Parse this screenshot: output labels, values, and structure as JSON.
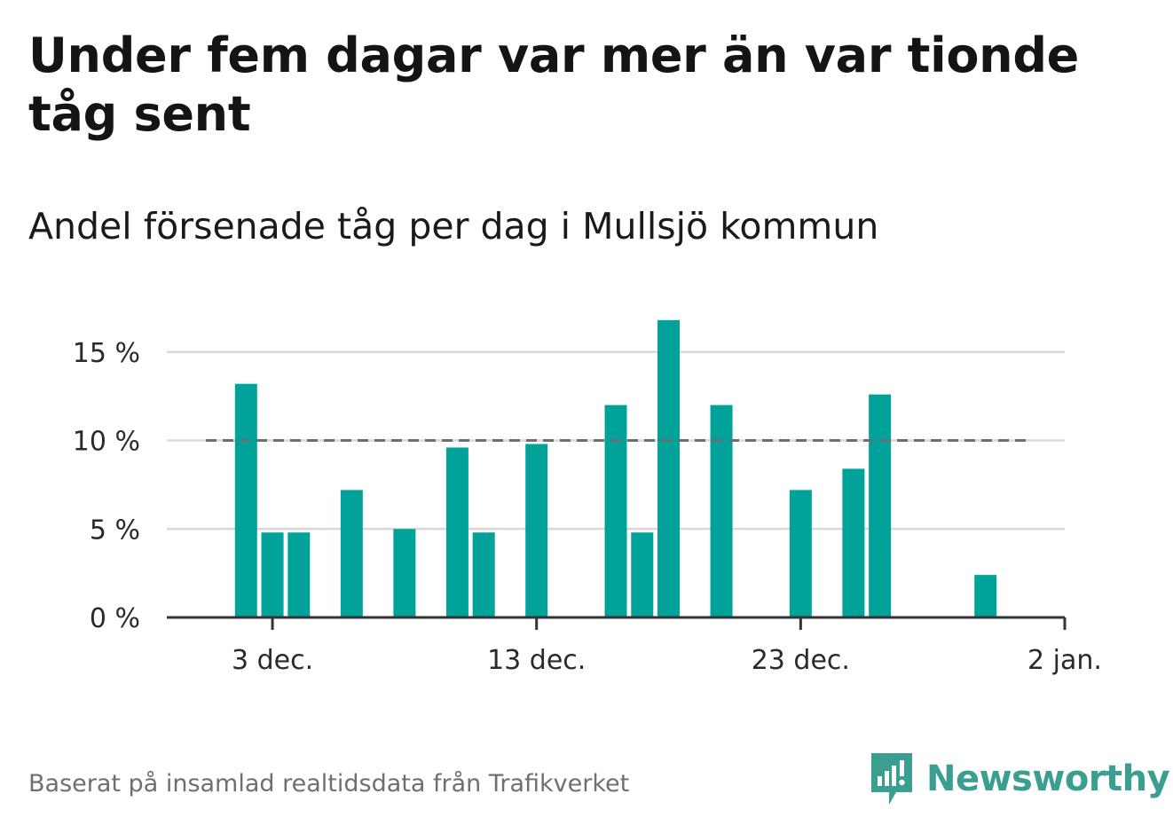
{
  "title": "Under fem dagar var mer än var tionde tåg sent",
  "subtitle": "Andel försenade tåg per dag i Mullsjö kommun",
  "source": "Baserat på insamlad realtidsdata från Trafikverket",
  "brand": {
    "name": "Newsworthy",
    "color": "#3a9e90",
    "icon": "newsworthy-logo-icon"
  },
  "colors": {
    "bar": "#00a29a",
    "threshold": "#6e6e6e",
    "grid": "#d9d9d9",
    "axis": "#333333"
  },
  "chart_data": {
    "type": "bar",
    "x_unit": "date",
    "x": [
      "2023-12-02",
      "2023-12-03",
      "2023-12-04",
      "2023-12-06",
      "2023-12-08",
      "2023-12-10",
      "2023-12-11",
      "2023-12-13",
      "2023-12-16",
      "2023-12-17",
      "2023-12-18",
      "2023-12-20",
      "2023-12-23",
      "2023-12-25",
      "2023-12-26",
      "2023-12-30"
    ],
    "values": [
      13.2,
      4.8,
      4.8,
      7.2,
      5.0,
      9.6,
      4.8,
      9.8,
      12.0,
      4.8,
      16.8,
      12.0,
      7.2,
      8.4,
      12.6,
      2.4
    ],
    "threshold": 10,
    "threshold_style": "dashed",
    "y_ticks": [
      0,
      5,
      10,
      15
    ],
    "y_tick_labels": [
      "0 %",
      "5 %",
      "10 %",
      "15 %"
    ],
    "x_ticks": [
      "2023-12-03",
      "2023-12-13",
      "2023-12-23",
      "2024-01-02"
    ],
    "x_tick_labels": [
      "3 dec.",
      "13 dec.",
      "23 dec.",
      "2 jan."
    ],
    "xlim": [
      "2023-11-29",
      "2024-01-02"
    ],
    "ylim": [
      0,
      17
    ],
    "grid": true
  }
}
